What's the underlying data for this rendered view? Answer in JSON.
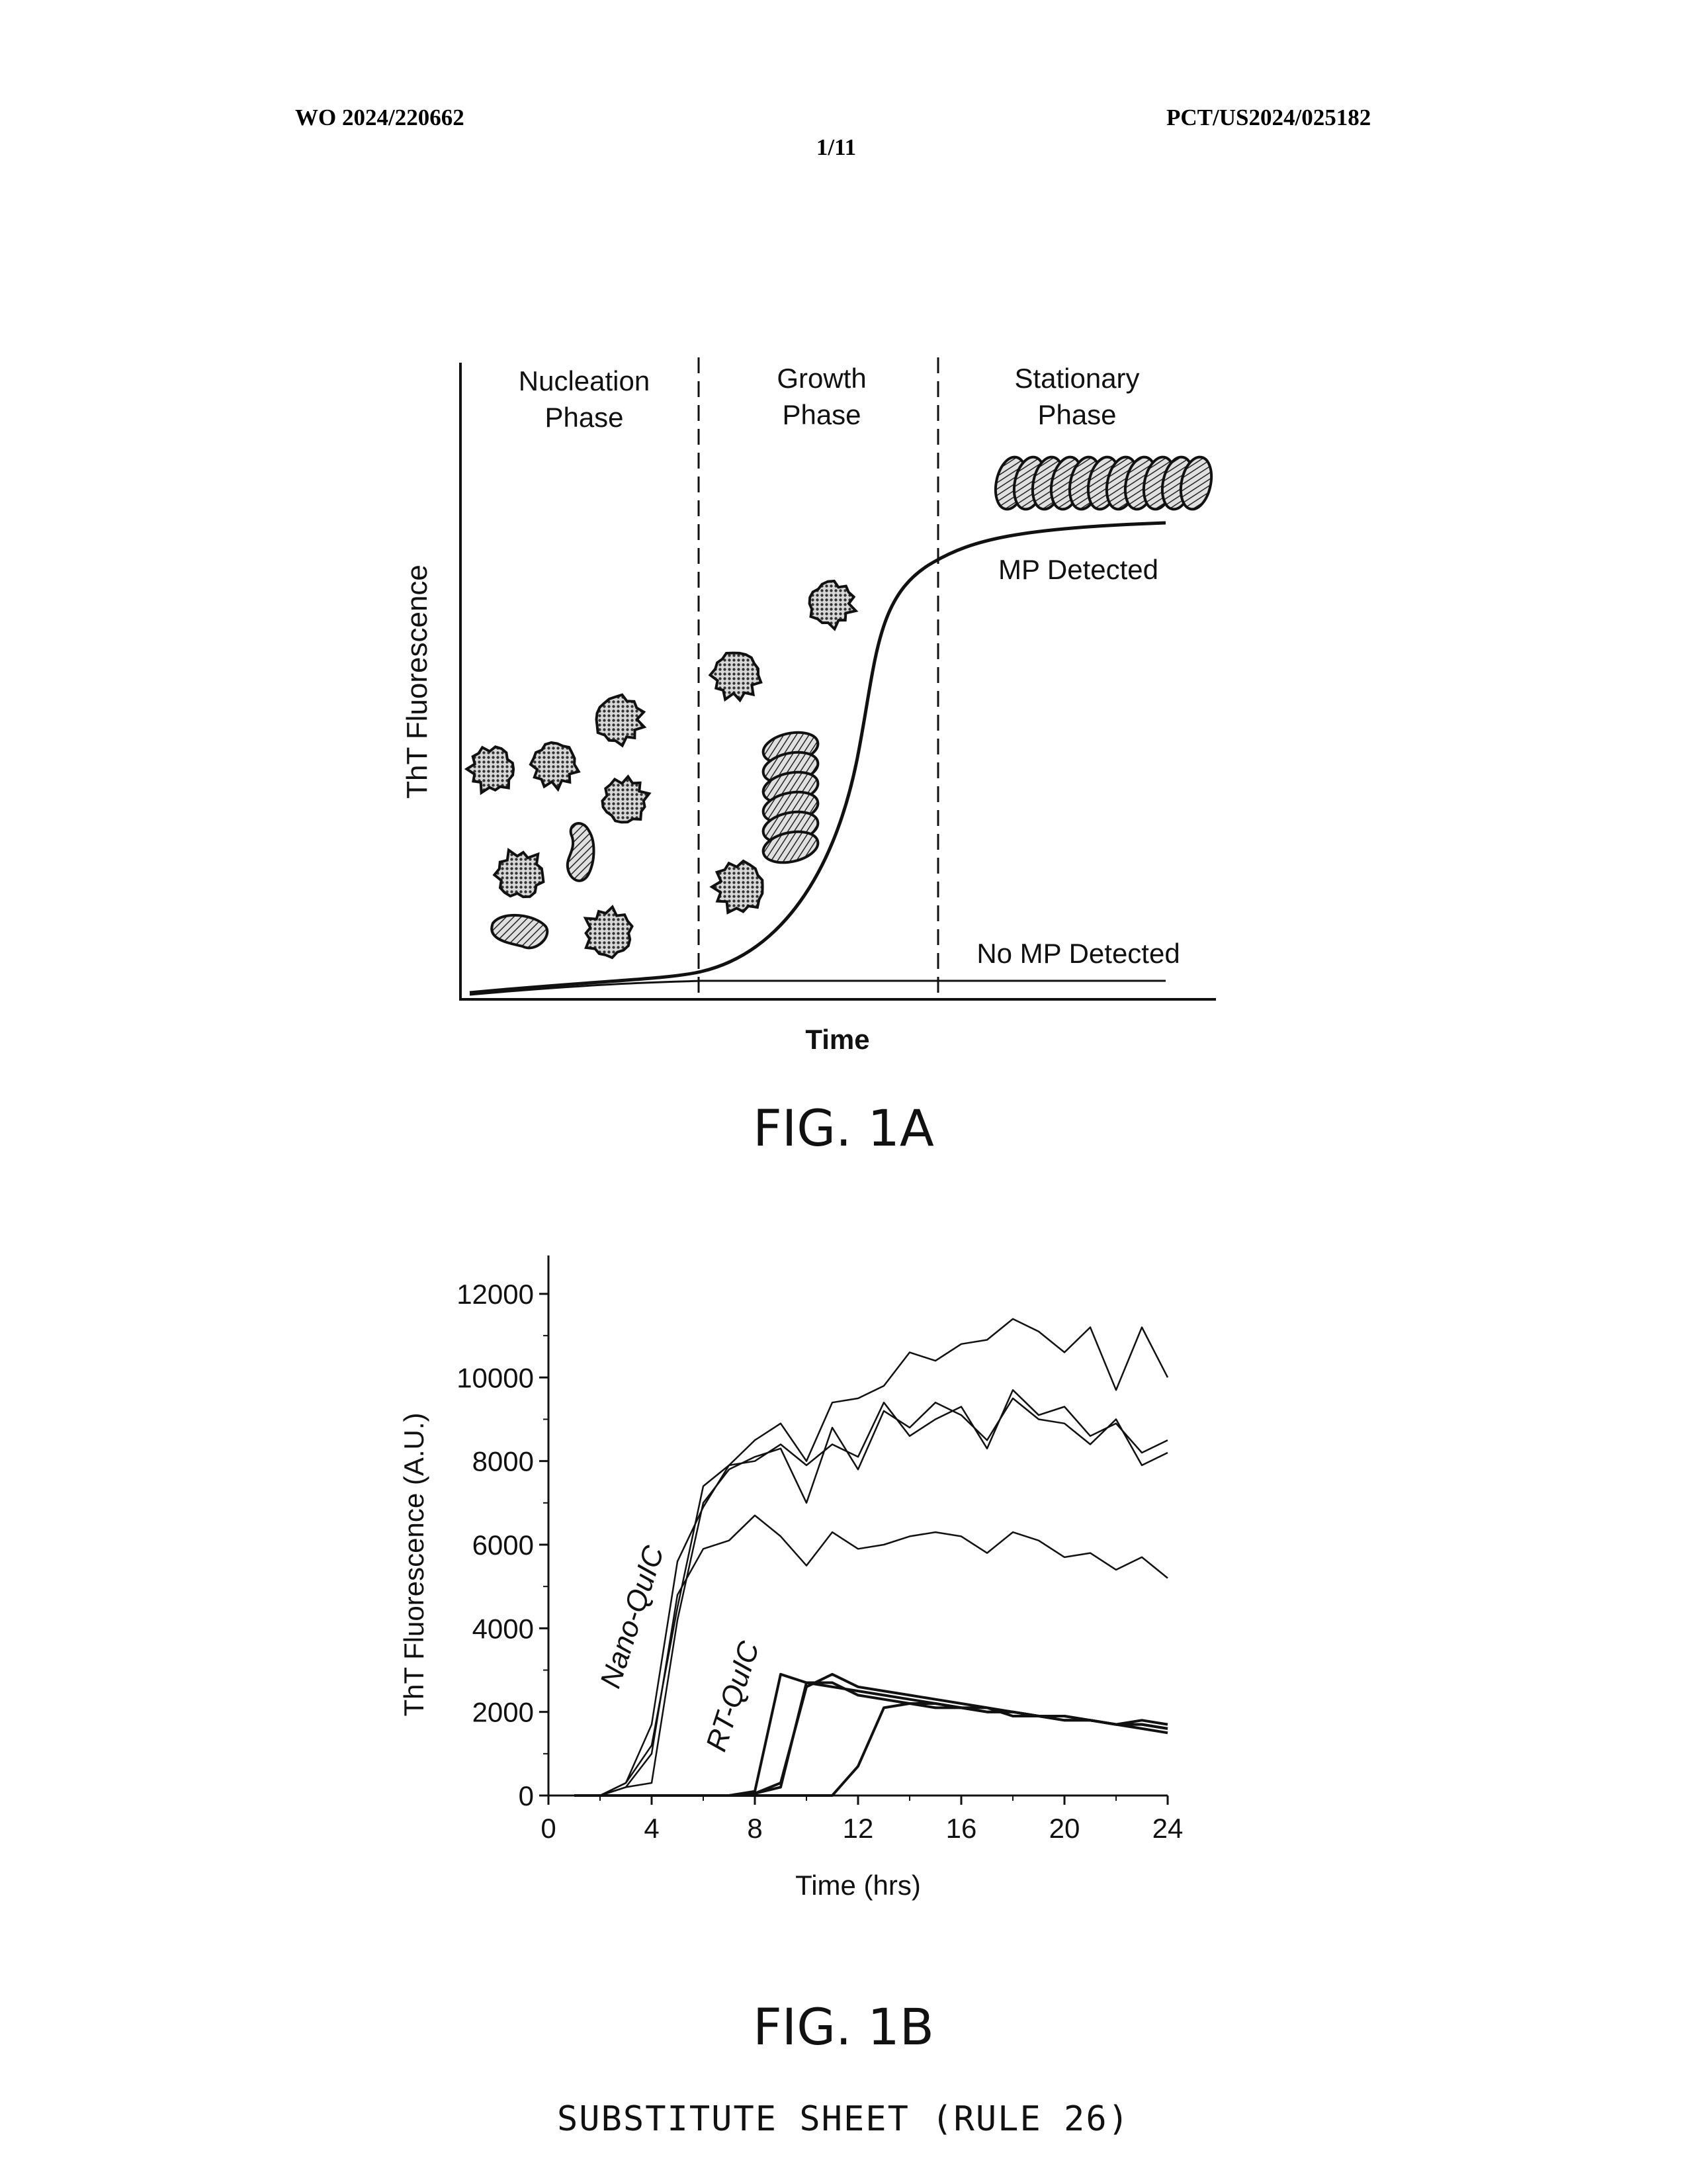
{
  "header": {
    "left": "WO 2024/220662",
    "right": "PCT/US2024/025182",
    "page": "1/11"
  },
  "footer": "SUBSTITUTE SHEET (RULE 26)",
  "colors": {
    "ink": "#111111",
    "dot_fill": "#888888",
    "hatch_fill": "#9a9a9a",
    "background": "#ffffff"
  },
  "chart_data": [
    {
      "figure": "FIG. 1A",
      "type": "line",
      "title": "",
      "xlabel": "Time",
      "ylabel": "ThT Fluorescence",
      "phases": [
        {
          "line1": "Nucleation",
          "line2": "Phase"
        },
        {
          "line1": "Growth",
          "line2": "Phase"
        },
        {
          "line1": "Stationary",
          "line2": "Phase"
        }
      ],
      "series": [
        {
          "label": "MP Detected",
          "shape": "sigmoid"
        },
        {
          "label": "No MP Detected",
          "shape": "flat"
        }
      ],
      "icons": [
        "monomer-protein-icon",
        "oligomer-icon",
        "fibril-stack-icon",
        "mature-fibril-icon"
      ]
    },
    {
      "figure": "FIG. 1B",
      "type": "line",
      "title": "",
      "xlabel": "Time (hrs)",
      "ylabel": "ThT Fluorescence (A.U.)",
      "xlim": [
        0,
        24
      ],
      "ylim": [
        0,
        12000
      ],
      "xticks": [
        0,
        4,
        8,
        12,
        16,
        20,
        24
      ],
      "yticks": [
        0,
        2000,
        4000,
        6000,
        8000,
        10000,
        12000
      ],
      "x": [
        1,
        2,
        3,
        4,
        5,
        6,
        7,
        8,
        9,
        10,
        11,
        12,
        13,
        14,
        15,
        16,
        17,
        18,
        19,
        20,
        21,
        22,
        23,
        24
      ],
      "groups": [
        {
          "label": "Nano-QuIC",
          "series": [
            {
              "values": [
                0,
                0,
                300,
                1200,
                4500,
                7400,
                7900,
                8500,
                8900,
                8000,
                9400,
                9500,
                9800,
                10600,
                10400,
                10800,
                10900,
                11400,
                11100,
                10600,
                11200,
                9700,
                11200,
                10000
              ]
            },
            {
              "values": [
                0,
                0,
                300,
                1700,
                5600,
                6900,
                7900,
                8000,
                8400,
                7900,
                8400,
                8100,
                9400,
                8600,
                9000,
                9300,
                8300,
                9700,
                9100,
                9300,
                8600,
                8900,
                8200,
                8500
              ]
            },
            {
              "values": [
                0,
                0,
                200,
                300,
                4200,
                7000,
                7800,
                8100,
                8300,
                7000,
                8800,
                7800,
                9200,
                8800,
                9400,
                9100,
                8500,
                9500,
                9000,
                8900,
                8400,
                9000,
                7900,
                8200
              ]
            },
            {
              "values": [
                0,
                0,
                200,
                1000,
                4800,
                5900,
                6100,
                6700,
                6200,
                5500,
                6300,
                5900,
                6000,
                6200,
                6300,
                6200,
                5800,
                6300,
                6100,
                5700,
                5800,
                5400,
                5700,
                5200
              ]
            }
          ]
        },
        {
          "label": "RT-QuIC",
          "series": [
            {
              "values": [
                0,
                0,
                0,
                0,
                0,
                0,
                0,
                100,
                2900,
                2700,
                2600,
                2500,
                2400,
                2300,
                2200,
                2100,
                2000,
                2000,
                1900,
                1900,
                1800,
                1700,
                1800,
                1700
              ]
            },
            {
              "values": [
                0,
                0,
                0,
                0,
                0,
                0,
                0,
                50,
                300,
                2600,
                2900,
                2600,
                2500,
                2400,
                2300,
                2200,
                2100,
                2000,
                1900,
                1900,
                1800,
                1700,
                1700,
                1600
              ]
            },
            {
              "values": [
                0,
                0,
                0,
                0,
                0,
                0,
                0,
                50,
                200,
                2700,
                2700,
                2400,
                2300,
                2200,
                2200,
                2100,
                2100,
                1900,
                1900,
                1800,
                1800,
                1700,
                1700,
                1600
              ]
            },
            {
              "values": [
                0,
                0,
                0,
                0,
                0,
                0,
                0,
                0,
                0,
                0,
                0,
                700,
                2100,
                2200,
                2100,
                2100,
                2000,
                2000,
                1900,
                1800,
                1800,
                1700,
                1600,
                1500
              ]
            }
          ]
        }
      ]
    }
  ]
}
